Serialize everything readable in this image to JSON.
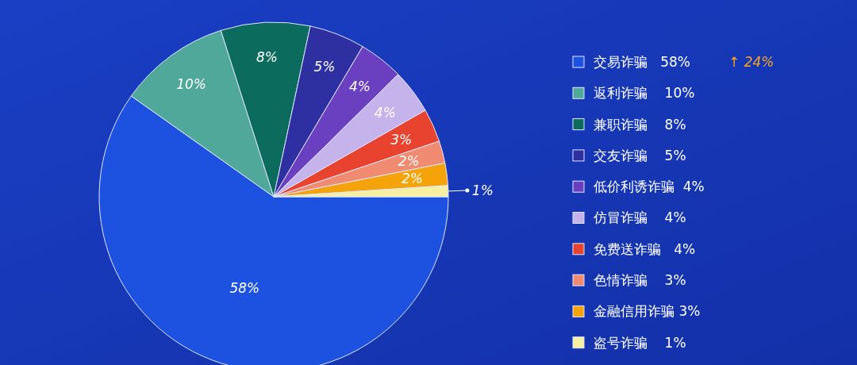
{
  "chart_data": {
    "type": "pie",
    "categories": [
      "交易诈骗   58%",
      "返利诈骗    10%",
      "兼职诈骗    8%",
      "交友诈骗    5%",
      "低价利诱诈骗  4%",
      "仿冒诈骗    4%",
      "免费送诈骗   4%",
      "色情诈骗    3%",
      "金融信用诈骗 3%",
      "盗号诈骗    1%"
    ],
    "values": [
      58,
      10,
      8,
      5,
      4,
      4,
      3,
      2,
      2,
      1
    ],
    "colors": [
      "#1d52e0",
      "#4fa89a",
      "#0b6b5c",
      "#2e2fa0",
      "#6a3fc0",
      "#c5b3ec",
      "#e8432e",
      "#f08a70",
      "#f5a30a",
      "#f6f0a0"
    ],
    "value_labels": [
      "58%",
      "10%",
      "8%",
      "5%",
      "4%",
      "4%",
      "3%",
      "2%",
      "2%",
      "1%"
    ],
    "legend": "right",
    "annotations": [
      "↑ 24%"
    ]
  }
}
